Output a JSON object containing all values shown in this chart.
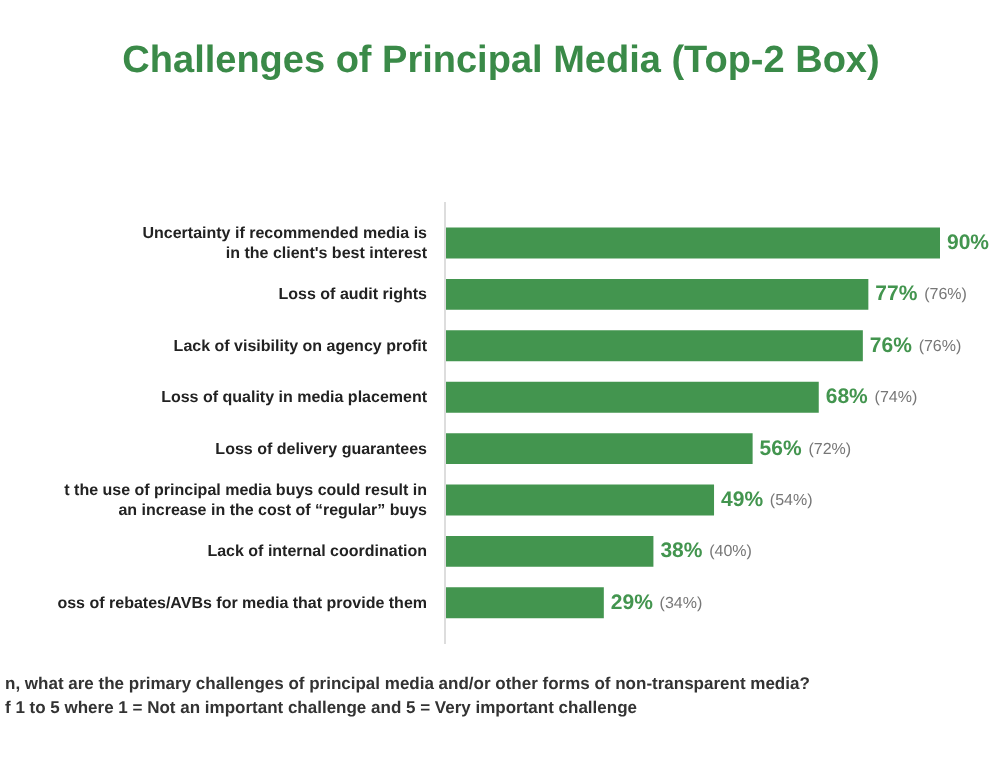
{
  "chart_data": {
    "type": "bar",
    "orientation": "horizontal",
    "title": "Challenges of Principal Media (Top-2 Box)",
    "categories": [
      "Uncertainty if recommended media is\nin the client's best interest",
      "Loss of audit rights",
      "Lack of visibility on agency profit",
      "Loss of quality in media placement",
      "Loss of delivery guarantees",
      "t the use of principal media buys could result in\nan increase in the cost of “regular” buys",
      "Lack of internal coordination",
      "oss of rebates/AVBs for media that provide them"
    ],
    "values": [
      90,
      77,
      76,
      68,
      56,
      49,
      38,
      29
    ],
    "color": "#43954f",
    "data_labels": true,
    "value_labels": [
      "90%",
      "77%",
      "76%",
      "68%",
      "56%",
      "49%",
      "38%",
      "29%"
    ],
    "tick_labels": false,
    "annotations": [
      "(76%)",
      "(76%)",
      "(74%)",
      "(72%)",
      "(54%)",
      "(40%)",
      "(34%)",
      "n, what are the primary challenges of principal media and/or other forms of non-transparent media?",
      "f 1 to 5 where 1 = Not an important challenge and 5 = Very important challenge"
    ]
  }
}
